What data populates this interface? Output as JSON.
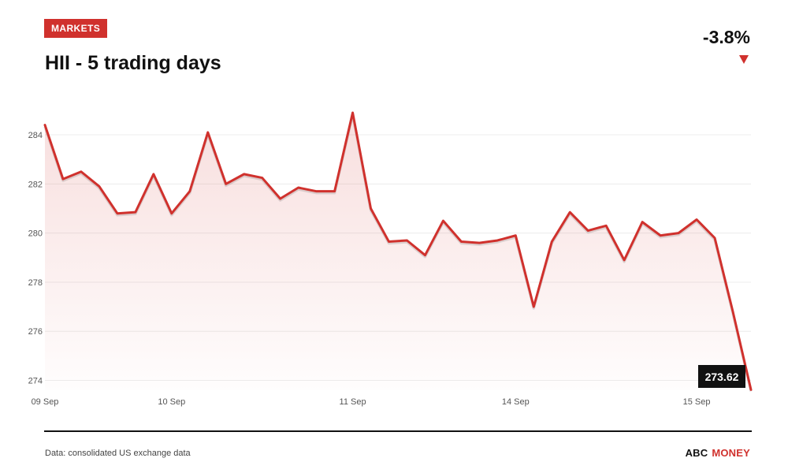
{
  "header": {
    "badge": "MARKETS",
    "title": "HII - 5 trading days",
    "change": "-3.8%"
  },
  "colors": {
    "accent": "#d0312d",
    "text": "#111111",
    "grid": "#ececec",
    "axis_text": "#555555"
  },
  "chart_data": {
    "type": "area",
    "title": "HII - 5 trading days",
    "xlabel": "",
    "ylabel": "",
    "ylim": [
      273.6,
      284.9
    ],
    "yticks": [
      274,
      276,
      278,
      280,
      282,
      284
    ],
    "xticks": [
      {
        "label": "09 Sep",
        "index": 0
      },
      {
        "label": "10 Sep",
        "index": 7
      },
      {
        "label": "11 Sep",
        "index": 17
      },
      {
        "label": "14 Sep",
        "index": 26
      },
      {
        "label": "15 Sep",
        "index": 36
      }
    ],
    "grid": true,
    "series": [
      {
        "values": [
          284.4,
          282.2,
          282.5,
          281.9,
          280.8,
          280.85,
          282.4,
          280.8,
          281.7,
          284.1,
          282.0,
          282.4,
          282.25,
          281.4,
          281.85,
          281.7,
          281.7,
          284.9,
          281.0,
          279.65,
          279.7,
          279.1,
          280.5,
          279.65,
          279.6,
          279.7,
          279.9,
          277.0,
          279.65,
          280.85,
          280.1,
          280.3,
          278.9,
          280.45,
          279.9,
          280.0,
          280.55,
          279.8,
          276.8,
          273.62
        ]
      }
    ],
    "last_value_label": "273.62"
  },
  "footer": {
    "source": "Data: consolidated US exchange data",
    "brand_part1": "ABC",
    "brand_part2": "MONEY"
  }
}
